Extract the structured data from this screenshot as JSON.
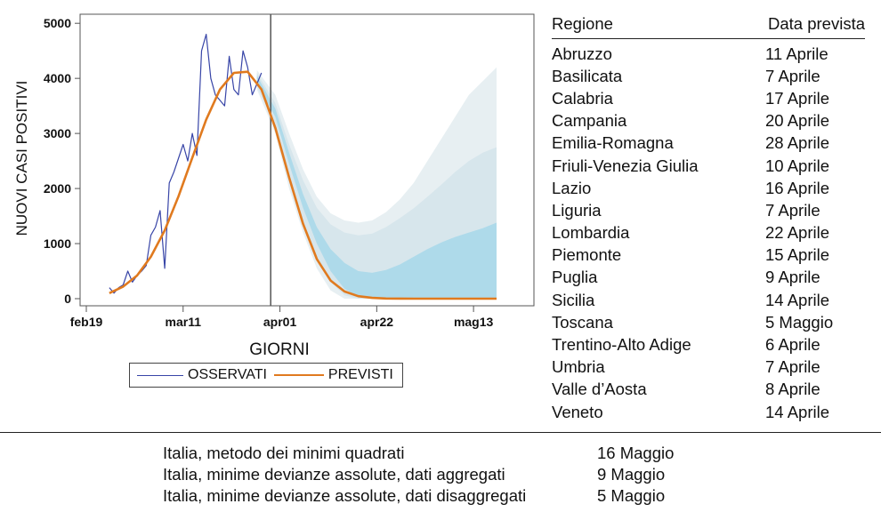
{
  "chart_data": {
    "type": "line",
    "xlabel": "GIORNI",
    "ylabel": "NUOVI CASI POSITIVI",
    "x_ticks": [
      "feb19",
      "mar11",
      "apr01",
      "apr22",
      "mag13"
    ],
    "y_ticks": [
      0,
      1000,
      2000,
      3000,
      4000,
      5000
    ],
    "ylim": [
      0,
      5000
    ],
    "x_axis_day_labels": {
      "feb19": 0,
      "mar11": 21,
      "apr01": 42,
      "apr22": 63,
      "mag13": 84
    },
    "forecast_start_day": 40,
    "series": [
      {
        "name": "OSSERVATI",
        "x": [
          5,
          6,
          7,
          8,
          9,
          10,
          11,
          12,
          13,
          14,
          15,
          16,
          17,
          18,
          19,
          20,
          21,
          22,
          23,
          24,
          25,
          26,
          27,
          28,
          29,
          30,
          31,
          32,
          33,
          34,
          35,
          36,
          37,
          38
        ],
        "y": [
          200,
          100,
          200,
          250,
          500,
          300,
          420,
          500,
          600,
          1150,
          1300,
          1600,
          550,
          2100,
          2300,
          2550,
          2800,
          2500,
          3000,
          2600,
          4500,
          4800,
          4000,
          3700,
          3600,
          3500,
          4400,
          3800,
          3700,
          4500,
          4200,
          3700,
          3900,
          4100
        ]
      },
      {
        "name": "PREVISTI",
        "x": [
          5,
          8,
          11,
          14,
          17,
          20,
          23,
          26,
          29,
          32,
          35,
          38,
          41,
          44,
          47,
          50,
          53,
          56,
          59,
          62,
          65,
          68,
          71,
          74,
          77,
          80,
          83,
          86,
          89
        ],
        "y": [
          100,
          220,
          420,
          760,
          1240,
          1860,
          2560,
          3250,
          3800,
          4100,
          4120,
          3800,
          3100,
          2200,
          1360,
          720,
          330,
          130,
          45,
          14,
          4,
          1,
          0,
          0,
          0,
          0,
          0,
          0,
          0
        ]
      }
    ],
    "bands": [
      {
        "x": [
          37,
          41,
          44,
          47,
          50,
          53,
          56,
          59,
          62,
          65,
          68,
          71,
          74,
          77,
          80,
          83,
          86,
          89
        ],
        "lower": [
          3800,
          3000,
          2000,
          1200,
          550,
          150,
          0,
          0,
          0,
          0,
          0,
          0,
          0,
          0,
          0,
          0,
          0,
          0
        ],
        "upper": [
          4150,
          3700,
          3000,
          2350,
          1850,
          1550,
          1420,
          1380,
          1420,
          1570,
          1800,
          2100,
          2500,
          2900,
          3300,
          3700,
          3950,
          4200
        ],
        "color": "#e7eff2"
      },
      {
        "x": [
          37,
          41,
          44,
          47,
          50,
          53,
          56,
          59,
          62,
          65,
          68,
          71,
          74,
          77,
          80,
          83,
          86,
          89
        ],
        "lower": [
          3850,
          3150,
          2200,
          1400,
          750,
          300,
          60,
          0,
          0,
          0,
          0,
          0,
          0,
          0,
          0,
          0,
          0,
          0
        ],
        "upper": [
          4100,
          3550,
          2800,
          2150,
          1650,
          1350,
          1200,
          1150,
          1180,
          1300,
          1460,
          1640,
          1850,
          2070,
          2300,
          2500,
          2650,
          2750
        ],
        "color": "#d7e6ec"
      },
      {
        "x": [
          37,
          41,
          44,
          47,
          50,
          53,
          56,
          59,
          62,
          65,
          68,
          71,
          74,
          77,
          80,
          83,
          86,
          89
        ],
        "lower": [
          3900,
          3300,
          2450,
          1650,
          1000,
          500,
          180,
          30,
          0,
          0,
          0,
          0,
          0,
          0,
          0,
          0,
          0,
          0
        ],
        "upper": [
          4050,
          3450,
          2650,
          1900,
          1300,
          900,
          650,
          500,
          470,
          520,
          620,
          760,
          900,
          1020,
          1120,
          1200,
          1280,
          1380
        ],
        "color": "#aedaea"
      }
    ]
  },
  "legend": {
    "observed": "OSSERVATI",
    "predicted": "PREVISTI"
  },
  "colors": {
    "observed": "#3845a7",
    "predicted": "#e07a1f"
  },
  "regions_table": {
    "header_region": "Regione",
    "header_date": "Data prevista",
    "rows": [
      {
        "region": "Abruzzo",
        "date": "11 Aprile"
      },
      {
        "region": "Basilicata",
        "date": "7 Aprile"
      },
      {
        "region": "Calabria",
        "date": "17 Aprile"
      },
      {
        "region": "Campania",
        "date": "20 Aprile"
      },
      {
        "region": "Emilia-Romagna",
        "date": "28 Aprile"
      },
      {
        "region": "Friuli-Venezia Giulia",
        "date": "10 Aprile"
      },
      {
        "region": "Lazio",
        "date": "16 Aprile"
      },
      {
        "region": "Liguria",
        "date": "7 Aprile"
      },
      {
        "region": "Lombardia",
        "date": "22 Aprile"
      },
      {
        "region": "Piemonte",
        "date": "15 Aprile"
      },
      {
        "region": "Puglia",
        "date": "9 Aprile"
      },
      {
        "region": "Sicilia",
        "date": "14 Aprile"
      },
      {
        "region": "Toscana",
        "date": "5 Maggio"
      },
      {
        "region": "Trentino-Alto Adige",
        "date": "6 Aprile"
      },
      {
        "region": "Umbria",
        "date": "7 Aprile"
      },
      {
        "region": "Valle d’Aosta",
        "date": "8 Aprile"
      },
      {
        "region": "Veneto",
        "date": "14 Aprile"
      }
    ]
  },
  "italy_methods": [
    {
      "method": "Italia, metodo dei minimi quadrati",
      "date": "16 Maggio"
    },
    {
      "method": "Italia, minime devianze assolute, dati aggregati",
      "date": "9 Maggio"
    },
    {
      "method": "Italia, minime devianze assolute, dati disaggregati",
      "date": "5 Maggio"
    }
  ]
}
